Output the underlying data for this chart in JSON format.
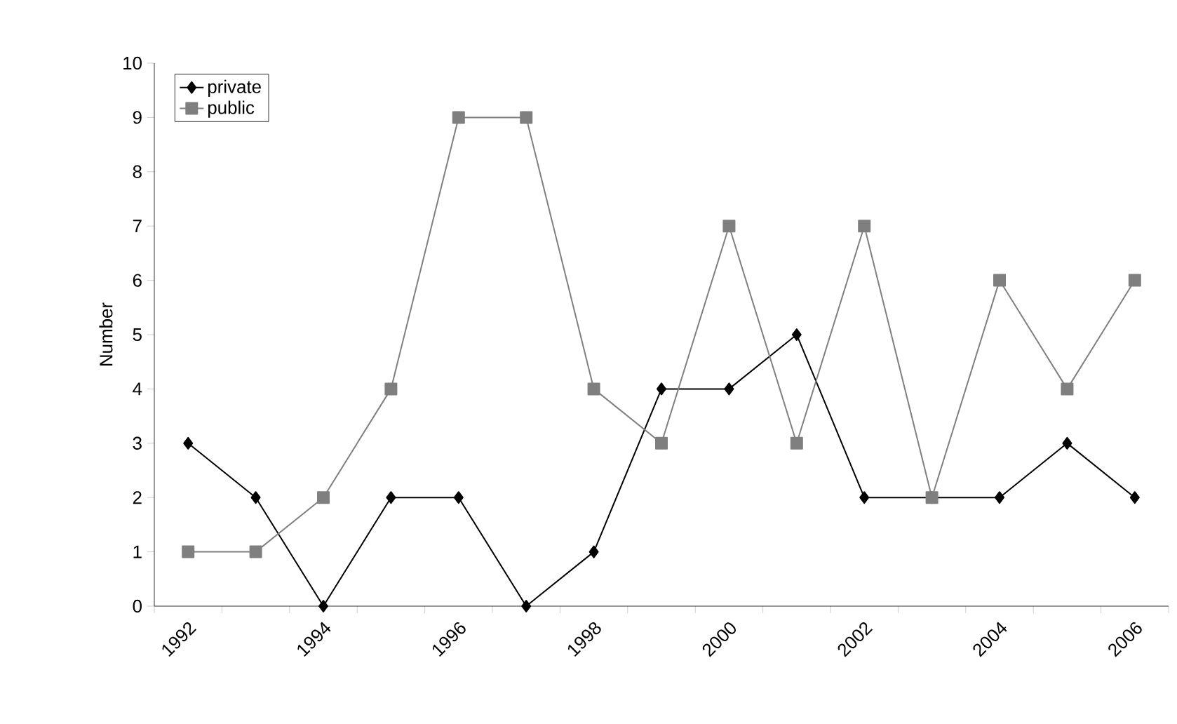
{
  "chart_data": {
    "type": "line",
    "ylabel": "Number",
    "categories": [
      "1992",
      null,
      "1994",
      null,
      "1996",
      null,
      "1998",
      null,
      "2000",
      null,
      "2002",
      null,
      "2004",
      null,
      "2006"
    ],
    "series": [
      {
        "name": "private",
        "color": "#000000",
        "marker": "diamond",
        "values": [
          3,
          2,
          0,
          2,
          2,
          0,
          1,
          4,
          4,
          5,
          2,
          2,
          2,
          3,
          2
        ]
      },
      {
        "name": "public",
        "color": "#7f7f7f",
        "marker": "square",
        "values": [
          1,
          1,
          2,
          4,
          9,
          9,
          4,
          3,
          7,
          3,
          7,
          2,
          6,
          4,
          6
        ]
      }
    ],
    "ylim": [
      0,
      10
    ],
    "yticks": [
      0,
      1,
      2,
      3,
      4,
      5,
      6,
      7,
      8,
      9,
      10
    ],
    "legend": "top left",
    "line_style": "solid"
  }
}
